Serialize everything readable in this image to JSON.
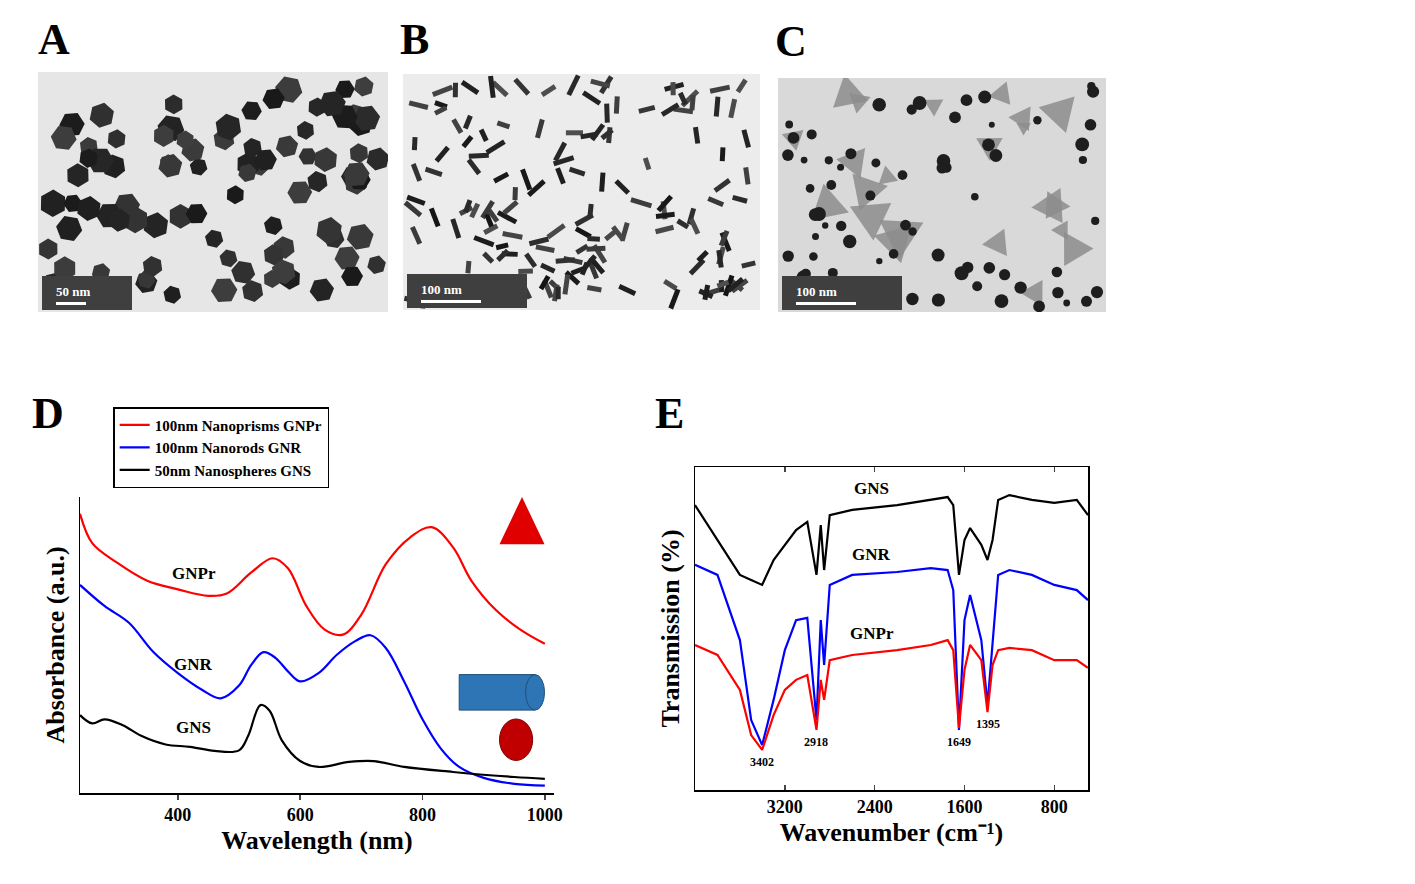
{
  "panels": [
    {
      "letter": "A",
      "scale_bar": "50 nm"
    },
    {
      "letter": "B",
      "scale_bar": "100 nm"
    },
    {
      "letter": "C",
      "scale_bar": "100 nm"
    }
  ],
  "chart_data": [
    {
      "panel": "D",
      "type": "line",
      "x_label": "Wavelength (nm)",
      "y_label": "Absorbance (a.u.)",
      "xlim": [
        240,
        1015
      ],
      "xticks": [
        400,
        600,
        800,
        1000
      ],
      "ylim": [
        0,
        10
      ],
      "yticks": [],
      "tick_labels": "x",
      "grid": false,
      "legend": "top-left",
      "series": [
        {
          "name": "100nm Nanoprisms GNPr",
          "label": "GNPr",
          "color": "#ff0000",
          "x": [
            240,
            260,
            300,
            350,
            400,
            450,
            480,
            520,
            555,
            580,
            610,
            640,
            670,
            700,
            740,
            780,
            815,
            850,
            880,
            920,
            960,
            1000
          ],
          "values": [
            9.43,
            8.44,
            7.79,
            7.17,
            6.88,
            6.66,
            6.74,
            7.45,
            7.93,
            7.59,
            6.32,
            5.52,
            5.35,
            6.03,
            7.73,
            8.64,
            8.98,
            8.3,
            7.17,
            6.18,
            5.52,
            5.04
          ]
        },
        {
          "name": "100nm Nanorods GNR",
          "label": "GNR",
          "color": "#0000ff",
          "x": [
            240,
            280,
            320,
            360,
            400,
            440,
            470,
            500,
            520,
            540,
            560,
            580,
            600,
            630,
            660,
            690,
            715,
            740,
            770,
            800,
            830,
            860,
            900,
            950,
            1000
          ],
          "values": [
            7.03,
            6.32,
            5.75,
            4.76,
            4.05,
            3.48,
            3.2,
            3.63,
            4.33,
            4.76,
            4.56,
            4.11,
            3.77,
            4.05,
            4.67,
            5.13,
            5.33,
            4.9,
            3.77,
            2.49,
            1.5,
            0.88,
            0.51,
            0.31,
            0.25
          ]
        },
        {
          "name": "50nm Nanospheres GNS",
          "label": "GNS",
          "color": "#000000",
          "x": [
            240,
            260,
            280,
            310,
            340,
            380,
            420,
            460,
            500,
            515,
            535,
            550,
            570,
            600,
            630,
            680,
            720,
            770,
            850,
            950,
            1000
          ],
          "values": [
            2.63,
            2.35,
            2.49,
            2.29,
            1.93,
            1.64,
            1.56,
            1.42,
            1.44,
            1.93,
            2.97,
            2.78,
            1.78,
            1.08,
            0.88,
            1.05,
            1.08,
            0.88,
            0.71,
            0.54,
            0.48
          ]
        }
      ]
    },
    {
      "panel": "E",
      "type": "line",
      "x_label": "Wavenumber (cm⁻¹)",
      "y_label": "Transmission (%)",
      "xlim": [
        4000,
        500
      ],
      "xticks": [
        3200,
        2400,
        1600,
        800
      ],
      "ylim": [
        0,
        10
      ],
      "yticks": [],
      "tick_labels": "x",
      "grid": false,
      "peak_labels": [
        3402,
        2918,
        1649,
        1395
      ],
      "series": [
        {
          "name": "GNS",
          "color": "#000000",
          "x": [
            4000,
            3800,
            3600,
            3500,
            3402,
            3300,
            3200,
            3100,
            3000,
            2918,
            2880,
            2850,
            2800,
            2600,
            2200,
            1900,
            1750,
            1700,
            1649,
            1600,
            1550,
            1450,
            1395,
            1350,
            1300,
            1200,
            1000,
            800,
            600,
            500
          ],
          "values": [
            8.82,
            7.74,
            6.66,
            6.5,
            6.35,
            7.12,
            7.59,
            8.05,
            8.3,
            6.66,
            8.2,
            6.81,
            8.51,
            8.67,
            8.82,
            8.98,
            9.07,
            8.82,
            6.66,
            7.74,
            8.11,
            7.59,
            7.12,
            7.74,
            8.98,
            9.13,
            8.98,
            8.89,
            8.98,
            8.51
          ]
        },
        {
          "name": "GNR",
          "color": "#0000ff",
          "x": [
            4000,
            3800,
            3600,
            3500,
            3402,
            3300,
            3200,
            3100,
            3000,
            2918,
            2880,
            2850,
            2800,
            2600,
            2200,
            1900,
            1750,
            1700,
            1649,
            1600,
            1550,
            1450,
            1395,
            1350,
            1300,
            1200,
            1000,
            800,
            600,
            500
          ],
          "values": [
            6.97,
            6.66,
            4.64,
            2.17,
            1.39,
            2.79,
            4.33,
            5.26,
            5.33,
            2.17,
            5.26,
            3.87,
            6.35,
            6.66,
            6.75,
            6.87,
            6.81,
            6.19,
            1.86,
            5.26,
            6.04,
            4.64,
            2.63,
            4.64,
            6.66,
            6.81,
            6.66,
            6.35,
            6.19,
            5.88
          ]
        },
        {
          "name": "GNPr",
          "color": "#ff0000",
          "x": [
            4000,
            3800,
            3600,
            3500,
            3402,
            3300,
            3200,
            3100,
            3000,
            2918,
            2880,
            2850,
            2800,
            2600,
            2200,
            1900,
            1750,
            1700,
            1649,
            1600,
            1550,
            1450,
            1395,
            1350,
            1300,
            1200,
            1000,
            800,
            600,
            500
          ],
          "values": [
            4.49,
            4.18,
            3.1,
            1.7,
            1.24,
            2.32,
            3.1,
            3.41,
            3.56,
            1.86,
            3.41,
            2.79,
            4.02,
            4.18,
            4.33,
            4.49,
            4.64,
            4.33,
            1.92,
            3.72,
            4.49,
            4.02,
            2.41,
            3.87,
            4.33,
            4.4,
            4.33,
            4.02,
            4.02,
            3.78
          ]
        }
      ]
    }
  ]
}
